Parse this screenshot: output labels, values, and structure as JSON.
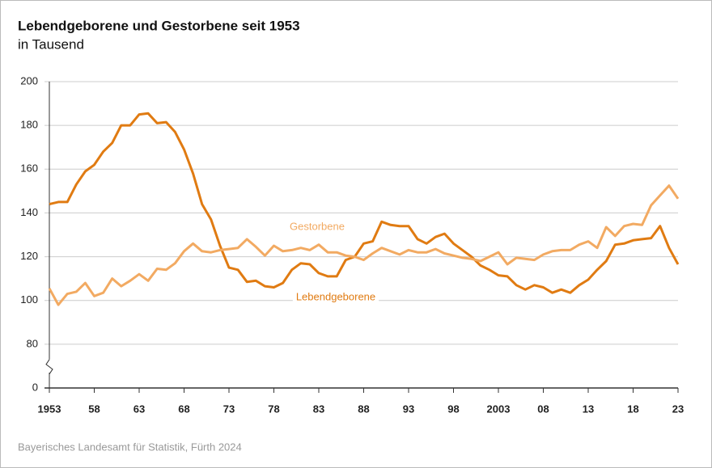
{
  "chart_data": {
    "type": "line",
    "title": "Lebendgeborene und Gestorbene seit 1953",
    "subtitle": "in Tausend",
    "source": "Bayerisches Landesamt für Statistik, Fürth 2024",
    "x": [
      1953,
      1954,
      1955,
      1956,
      1957,
      1958,
      1959,
      1960,
      1961,
      1962,
      1963,
      1964,
      1965,
      1966,
      1967,
      1968,
      1969,
      1970,
      1971,
      1972,
      1973,
      1974,
      1975,
      1976,
      1977,
      1978,
      1979,
      1980,
      1981,
      1982,
      1983,
      1984,
      1985,
      1986,
      1987,
      1988,
      1989,
      1990,
      1991,
      1992,
      1993,
      1994,
      1995,
      1996,
      1997,
      1998,
      1999,
      2000,
      2001,
      2002,
      2003,
      2004,
      2005,
      2006,
      2007,
      2008,
      2009,
      2010,
      2011,
      2012,
      2013,
      2014,
      2015,
      2016,
      2017,
      2018,
      2019,
      2020,
      2021,
      2022,
      2023
    ],
    "series": [
      {
        "name": "Lebendgeborene",
        "color": "#e07b12",
        "values": [
          144,
          145,
          145,
          153,
          159,
          162,
          168,
          172,
          180,
          180,
          185,
          185.5,
          181,
          181.5,
          177,
          169,
          158,
          144,
          137,
          125,
          115,
          114,
          108.5,
          109,
          106.5,
          106,
          108,
          114,
          117,
          116.5,
          112.5,
          111,
          111,
          118.5,
          120,
          126,
          127,
          136,
          134.5,
          134,
          134,
          128,
          126,
          129,
          130.5,
          126,
          123,
          120,
          116,
          114,
          111.5,
          111,
          107,
          105,
          107,
          106,
          103.5,
          105,
          103.5,
          107,
          109.5,
          114,
          118,
          125.5,
          126,
          127.5,
          128,
          128.5,
          134,
          124,
          116.5
        ]
      },
      {
        "name": "Gestorbene",
        "color": "#f2aa62",
        "values": [
          105.5,
          98,
          103,
          104,
          108,
          102,
          103.5,
          110,
          106.5,
          109,
          112,
          109,
          114.5,
          114,
          117,
          122.5,
          126,
          122.5,
          122,
          123,
          123.5,
          124,
          128,
          124.5,
          120.5,
          125,
          122.5,
          123,
          124,
          123,
          125.5,
          122,
          122,
          120.5,
          120,
          118.5,
          121.5,
          124,
          122.5,
          121,
          123,
          122,
          122,
          123.5,
          121.5,
          120.5,
          119.5,
          119,
          118,
          120,
          122,
          116.5,
          119.5,
          119,
          118.5,
          121,
          122.5,
          123,
          123,
          125.5,
          127,
          124,
          133.5,
          129.5,
          134,
          135,
          134.5,
          143.5,
          148,
          152.5,
          146.5
        ]
      }
    ],
    "xlim": [
      1953,
      2023
    ],
    "xticks": [
      1953,
      {
        "value": 1958,
        "label": "58"
      },
      {
        "value": 1963,
        "label": "63"
      },
      {
        "value": 1968,
        "label": "68"
      },
      {
        "value": 1973,
        "label": "73"
      },
      {
        "value": 1978,
        "label": "78"
      },
      {
        "value": 1983,
        "label": "83"
      },
      {
        "value": 1988,
        "label": "88"
      },
      {
        "value": 1993,
        "label": "93"
      },
      {
        "value": 1998,
        "label": "98"
      },
      2003,
      {
        "value": 2008,
        "label": "08"
      },
      {
        "value": 2013,
        "label": "13"
      },
      {
        "value": 2018,
        "label": "18"
      },
      {
        "value": 2023,
        "label": "23"
      }
    ],
    "ylim": [
      0,
      200
    ],
    "yticks": [
      0,
      80,
      100,
      120,
      140,
      160,
      180,
      200
    ],
    "y_break": true,
    "grid": true
  }
}
